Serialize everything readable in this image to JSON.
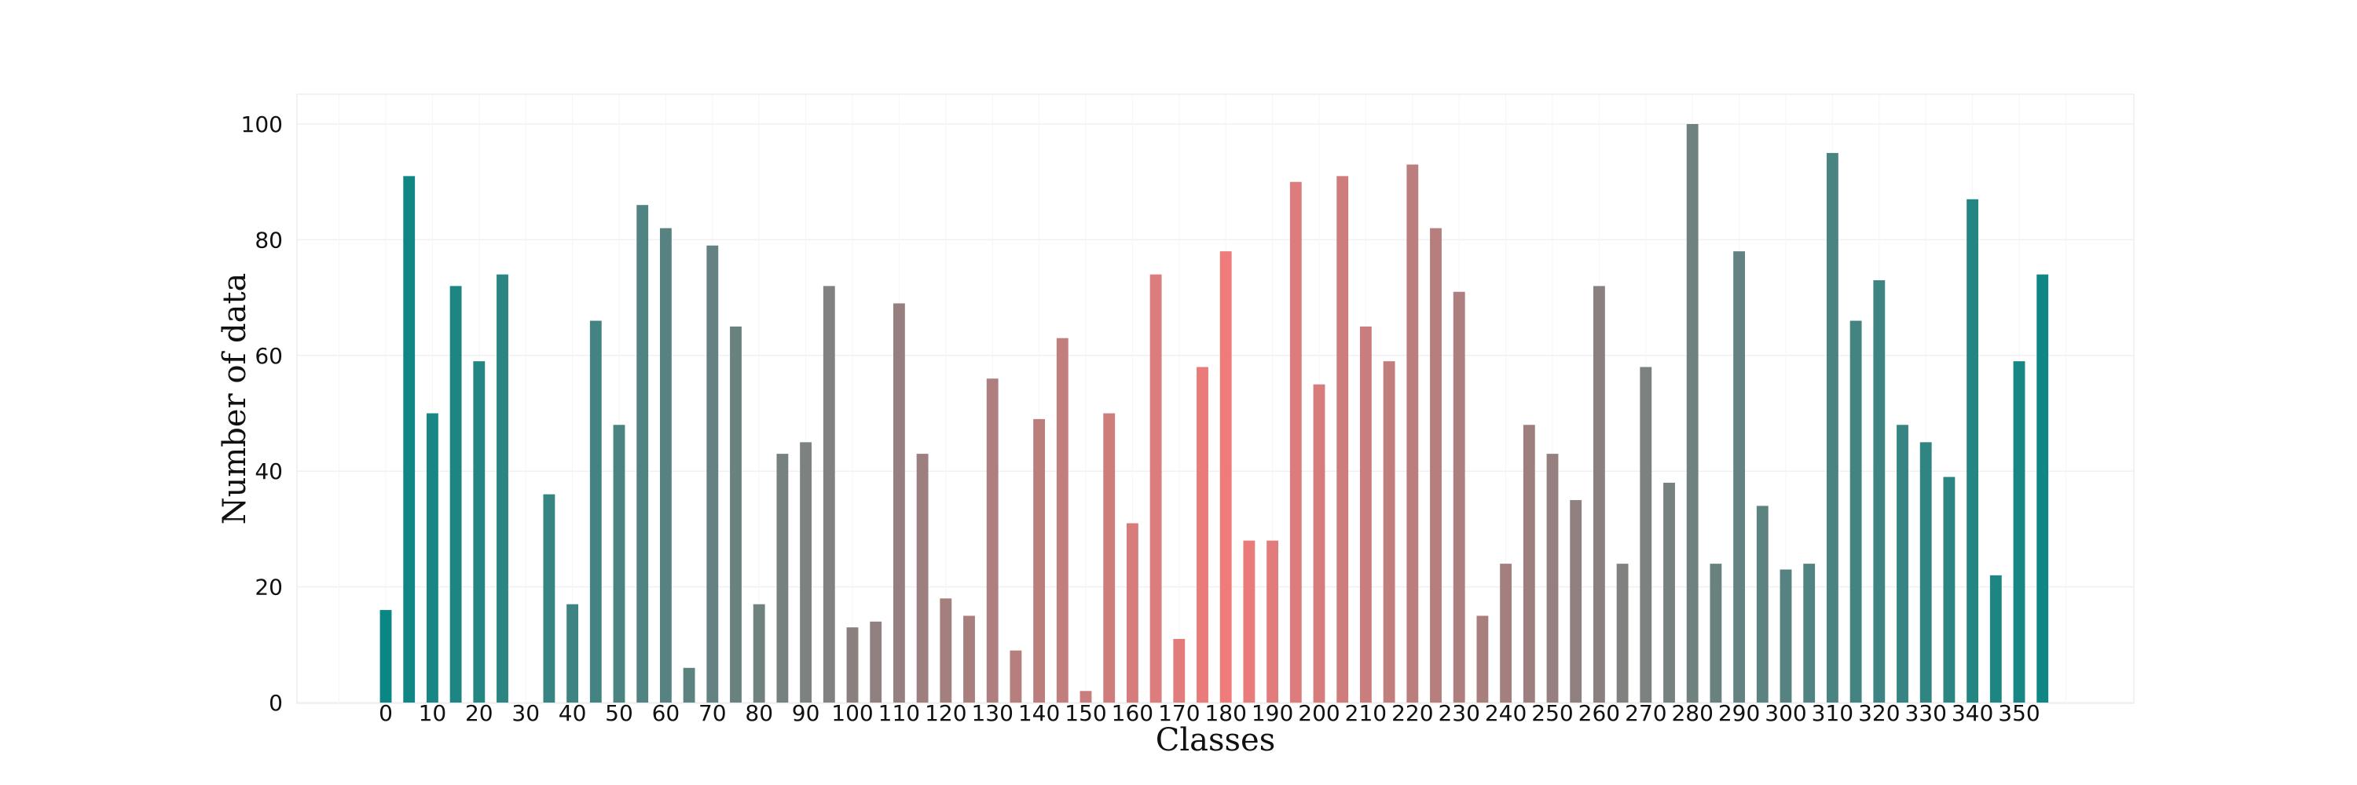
{
  "chart_data": {
    "type": "bar",
    "xlabel": "Classes",
    "ylabel": "Number of data",
    "xlim": [
      -10,
      360
    ],
    "ylim": [
      0,
      100
    ],
    "xticks": [
      0,
      10,
      20,
      30,
      40,
      50,
      60,
      70,
      80,
      90,
      100,
      110,
      120,
      130,
      140,
      150,
      160,
      170,
      180,
      190,
      200,
      210,
      220,
      230,
      240,
      250,
      260,
      270,
      280,
      290,
      300,
      310,
      320,
      330,
      340,
      350
    ],
    "yticks": [
      0,
      20,
      40,
      60,
      80,
      100
    ],
    "grid": true,
    "bar_width": 2.5,
    "color_scale": {
      "low": "#0a8784",
      "high": "#ef7b7b",
      "peak_class": 180
    },
    "x": [
      0,
      5,
      10,
      15,
      20,
      25,
      30,
      35,
      40,
      45,
      50,
      55,
      60,
      65,
      70,
      75,
      80,
      85,
      90,
      95,
      100,
      105,
      110,
      115,
      120,
      125,
      130,
      135,
      140,
      145,
      150,
      155,
      160,
      165,
      170,
      175,
      180,
      185,
      190,
      195,
      200,
      205,
      210,
      215,
      220,
      225,
      230,
      235,
      240,
      245,
      250,
      255,
      260,
      265,
      270,
      275,
      280,
      285,
      290,
      295,
      300,
      305,
      310,
      315,
      320,
      325,
      330,
      335,
      340,
      345,
      350,
      355
    ],
    "values": [
      16,
      91,
      50,
      72,
      59,
      74,
      0,
      36,
      17,
      66,
      48,
      86,
      82,
      6,
      79,
      65,
      17,
      43,
      45,
      72,
      13,
      14,
      69,
      43,
      18,
      15,
      56,
      9,
      49,
      63,
      2,
      50,
      31,
      74,
      11,
      58,
      78,
      28,
      28,
      90,
      55,
      91,
      65,
      59,
      93,
      82,
      71,
      15,
      24,
      48,
      43,
      35,
      72,
      24,
      58,
      38,
      100,
      24,
      78,
      34,
      23,
      24,
      95,
      66,
      73,
      48,
      45,
      39,
      87,
      22,
      59,
      74
    ]
  }
}
